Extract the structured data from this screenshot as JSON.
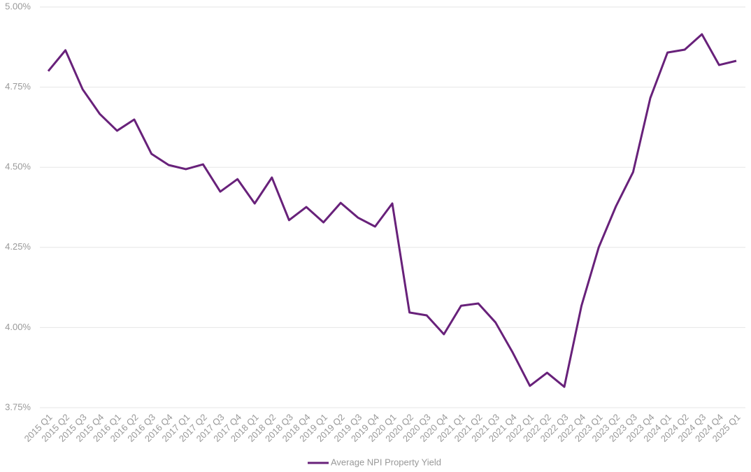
{
  "chart_data": {
    "type": "line",
    "categories": [
      "2015 Q1",
      "2015 Q2",
      "2015 Q3",
      "2015 Q4",
      "2016 Q1",
      "2016 Q2",
      "2016 Q3",
      "2016 Q4",
      "2017 Q1",
      "2017 Q2",
      "2017 Q3",
      "2017 Q4",
      "2018 Q1",
      "2018 Q2",
      "2018 Q3",
      "2018 Q4",
      "2019 Q1",
      "2019 Q2",
      "2019 Q3",
      "2019 Q4",
      "2020 Q1",
      "2020 Q2",
      "2020 Q3",
      "2020 Q4",
      "2021 Q1",
      "2021 Q2",
      "2021 Q3",
      "2021 Q4",
      "2022 Q1",
      "2022 Q2",
      "2022 Q3",
      "2022 Q4",
      "2023 Q1",
      "2023 Q2",
      "2023 Q3",
      "2023 Q4",
      "2024 Q1",
      "2024 Q2",
      "2024 Q3",
      "2024 Q4",
      "2025 Q1"
    ],
    "series": [
      {
        "name": "Average NPI Property Yield",
        "color": "#68217a",
        "values": [
          4.8,
          4.865,
          4.743,
          4.666,
          4.614,
          4.649,
          4.542,
          4.507,
          4.494,
          4.509,
          4.424,
          4.463,
          4.387,
          4.468,
          4.335,
          4.376,
          4.328,
          4.389,
          4.343,
          4.315,
          4.387,
          4.047,
          4.038,
          3.979,
          4.068,
          4.075,
          4.016,
          3.922,
          3.818,
          3.859,
          3.815,
          4.068,
          4.25,
          4.378,
          4.485,
          4.716,
          4.858,
          4.867,
          4.915,
          4.819,
          4.832
        ]
      }
    ],
    "ylim": [
      3.75,
      5.0
    ],
    "yticks": [
      {
        "value": 3.75,
        "label": "3.75%"
      },
      {
        "value": 4.0,
        "label": "4.00%"
      },
      {
        "value": 4.25,
        "label": "4.25%"
      },
      {
        "value": 4.5,
        "label": "4.50%"
      },
      {
        "value": 4.75,
        "label": "4.75%"
      },
      {
        "value": 5.0,
        "label": "5.00%"
      }
    ],
    "grid": true,
    "legend": "bottom"
  }
}
